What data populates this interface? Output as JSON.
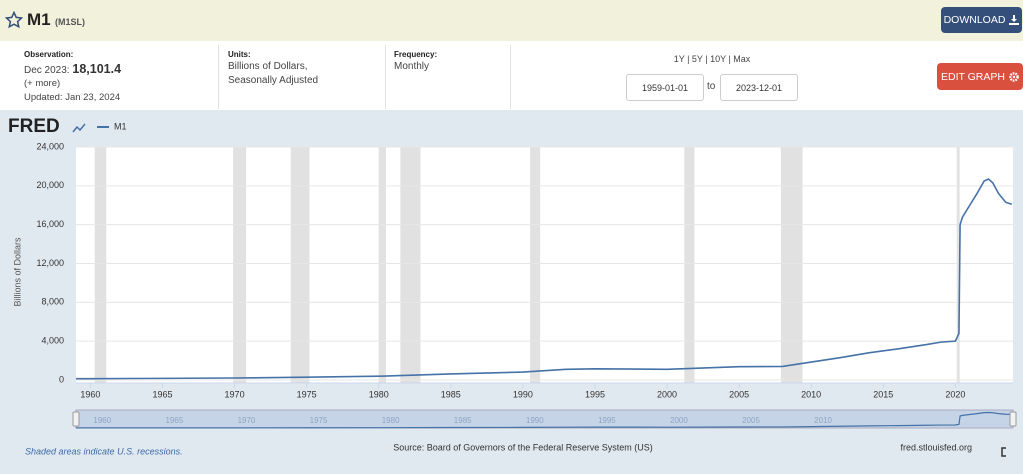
{
  "header": {
    "title": "M1",
    "series_id": "(M1SL)",
    "download": "DOWNLOAD"
  },
  "info": {
    "observation_label": "Observation:",
    "observation_date": "Dec 2023:",
    "observation_value": "18,101.4",
    "more": "(+ more)",
    "updated": "Updated: Jan 23, 2024",
    "units_label": "Units:",
    "units": [
      "Billions of Dollars,",
      "Seasonally Adjusted"
    ],
    "frequency_label": "Frequency:",
    "frequency": "Monthly",
    "ranges": "1Y | 5Y | 10Y | Max",
    "start_date": "1959-01-01",
    "to": "to",
    "end_date": "2023-12-01",
    "edit_graph": "EDIT GRAPH"
  },
  "logo": "FRED",
  "chart_data": {
    "type": "line",
    "y_label": "Billions of Dollars",
    "series": [
      {
        "name": "M1",
        "color": "#4572a7",
        "x": [
          1959,
          1960,
          1965,
          1970,
          1975,
          1980,
          1985,
          1990,
          1993,
          1995,
          2000,
          2005,
          2008,
          2010,
          2012,
          2014,
          2016,
          2018,
          2019,
          2020,
          2020.25,
          2020.33,
          2020.5,
          2021,
          2021.5,
          2022,
          2022.3,
          2022.6,
          2023,
          2023.5,
          2023.92
        ],
        "values": [
          139,
          140,
          168,
          206,
          285,
          390,
          620,
          820,
          1100,
          1150,
          1100,
          1370,
          1400,
          1850,
          2300,
          2800,
          3200,
          3650,
          3900,
          4000,
          4800,
          16000,
          16800,
          18000,
          19200,
          20500,
          20700,
          20300,
          19200,
          18300,
          18101.4
        ]
      }
    ],
    "recessions": [
      [
        1960.3,
        1961.1
      ],
      [
        1969.9,
        1970.8
      ],
      [
        1973.9,
        1975.2
      ],
      [
        1980.0,
        1980.5
      ],
      [
        1981.5,
        1982.9
      ],
      [
        1990.5,
        1991.2
      ],
      [
        2001.2,
        2001.9
      ],
      [
        2007.9,
        2009.4
      ],
      [
        2020.1,
        2020.3
      ]
    ],
    "xlim": [
      1959,
      2024
    ],
    "xticks": [
      1960,
      1965,
      1970,
      1975,
      1980,
      1985,
      1990,
      1995,
      2000,
      2005,
      2010,
      2015,
      2020
    ],
    "ylim": [
      0,
      24000
    ],
    "yticks": [
      0,
      {
        "value": 4000,
        "label": "4,000"
      },
      {
        "value": 8000,
        "label": "8,000"
      },
      {
        "value": 12000,
        "label": "12,000"
      },
      {
        "value": 16000,
        "label": "16,000"
      },
      {
        "value": 20000,
        "label": "20,000"
      },
      {
        "value": 24000,
        "label": "24,000"
      }
    ],
    "grid": true,
    "note": "Shaded areas indicate U.S. recessions.",
    "source": "Source: Board of Governors of the Federal Reserve System (US)",
    "site": "fred.stlouisfed.org"
  }
}
